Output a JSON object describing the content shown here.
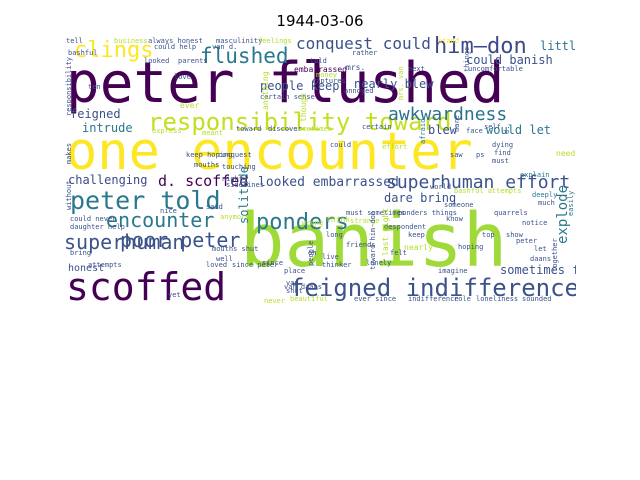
{
  "title": "1944-03-06",
  "words": [
    {
      "text": "banish",
      "color": "#a0da39"
    },
    {
      "text": "peter flushed",
      "color": "#440154"
    },
    {
      "text": "one encounter",
      "color": "#fde725"
    },
    {
      "text": "scoffed",
      "color": "#440154"
    },
    {
      "text": "feigned indifference",
      "color": "#3b528b"
    },
    {
      "text": "responsibility toward",
      "color": "#c2df23"
    },
    {
      "text": "peter told",
      "color": "#2a788e"
    },
    {
      "text": "ponders",
      "color": "#2a788e"
    },
    {
      "text": "superhuman effort",
      "color": "#3b528b"
    },
    {
      "text": "awkwardness",
      "color": "#2c728e"
    },
    {
      "text": "clings",
      "color": "#fde725"
    },
    {
      "text": "flushed",
      "color": "#2a788e"
    },
    {
      "text": "him—don",
      "color": "#3e4989"
    },
    {
      "text": "conquest could",
      "color": "#3b528b"
    },
    {
      "text": "encounter",
      "color": "#2a788e"
    },
    {
      "text": "poor peter",
      "color": "#3b528b"
    },
    {
      "text": "superhuman",
      "color": "#3b528b"
    },
    {
      "text": "d. scoffed",
      "color": "#440154"
    },
    {
      "text": "looked embarrassed",
      "color": "#3b528b"
    },
    {
      "text": "challenging",
      "color": "#3e4989"
    },
    {
      "text": "explode",
      "color": "#2a788e"
    },
    {
      "text": "solitude",
      "color": "#2a788e"
    },
    {
      "text": "dare bring",
      "color": "#3b528b"
    },
    {
      "text": "could banish",
      "color": "#3b528b"
    },
    {
      "text": "little",
      "color": "#2a788e"
    },
    {
      "text": "people keep",
      "color": "#3b528b"
    },
    {
      "text": "nearly blew",
      "color": "#3b528b"
    },
    {
      "text": "blew",
      "color": "#3b528b"
    },
    {
      "text": "would let",
      "color": "#2a788e"
    },
    {
      "text": "feigned",
      "color": "#3b528b"
    },
    {
      "text": "intrude",
      "color": "#2a788e"
    },
    {
      "text": "honest",
      "color": "#3b528b"
    },
    {
      "text": "sometimes feel",
      "color": "#3b528b"
    },
    {
      "text": "tell",
      "color": "#3b528b"
    },
    {
      "text": "business",
      "color": "#b5de2b"
    },
    {
      "text": "always honest",
      "color": "#3b528b"
    },
    {
      "text": "masculinity",
      "color": "#3b528b"
    },
    {
      "text": "feelings",
      "color": "#b5de2b"
    },
    {
      "text": "could help",
      "color": "#3b528b"
    },
    {
      "text": "van d.",
      "color": "#3b528b"
    },
    {
      "text": "stand",
      "color": "#fde725"
    },
    {
      "text": "embarrassed",
      "color": "#440154"
    },
    {
      "text": "mrs.",
      "color": "#3b528b"
    },
    {
      "text": "ever",
      "color": "#b5de2b"
    },
    {
      "text": "responsibility",
      "color": "#3b528b"
    },
    {
      "text": "love",
      "color": "#3b528b"
    },
    {
      "text": "certain sense",
      "color": "#3b528b"
    },
    {
      "text": "annoyed",
      "color": "#3b528b"
    },
    {
      "text": "certain",
      "color": "#3b528b"
    },
    {
      "text": "sometimes",
      "color": "#b5de2b"
    },
    {
      "text": "toward",
      "color": "#3b528b"
    },
    {
      "text": "discover",
      "color": "#3b528b"
    },
    {
      "text": "keep hoping",
      "color": "#3b528b"
    },
    {
      "text": "afraid",
      "color": "#2a788e"
    },
    {
      "text": "dying",
      "color": "#3b528b"
    },
    {
      "text": "find",
      "color": "#3b528b"
    },
    {
      "text": "must",
      "color": "#3b528b"
    },
    {
      "text": "face",
      "color": "#3b528b"
    },
    {
      "text": "mouths",
      "color": "#3b528b"
    },
    {
      "text": "could",
      "color": "#3b528b"
    },
    {
      "text": "touching",
      "color": "#3b528b"
    },
    {
      "text": "world",
      "color": "#3b528b"
    },
    {
      "text": "bashful attempts",
      "color": "#b5de2b"
    },
    {
      "text": "deeply",
      "color": "#2a788e"
    },
    {
      "text": "much",
      "color": "#3b528b"
    },
    {
      "text": "daughter help",
      "color": "#3b528b"
    },
    {
      "text": "could never",
      "color": "#3b528b"
    },
    {
      "text": "must sometimes",
      "color": "#3b528b"
    },
    {
      "text": "ponders things",
      "color": "#3b528b"
    },
    {
      "text": "someone",
      "color": "#3b528b"
    },
    {
      "text": "quarrels",
      "color": "#3b528b"
    },
    {
      "text": "strange",
      "color": "#b5de2b"
    },
    {
      "text": "long",
      "color": "#3b528b"
    },
    {
      "text": "keep",
      "color": "#3b528b"
    },
    {
      "text": "hoping",
      "color": "#3b528b"
    },
    {
      "text": "show",
      "color": "#3b528b"
    },
    {
      "text": "nearly",
      "color": "#b5de2b"
    },
    {
      "text": "peter",
      "color": "#3b528b"
    },
    {
      "text": "let",
      "color": "#3b528b"
    },
    {
      "text": "daans",
      "color": "#3b528b"
    },
    {
      "text": "mouths shut",
      "color": "#3b528b"
    },
    {
      "text": "bring",
      "color": "#3b528b"
    },
    {
      "text": "attempts",
      "color": "#3b528b"
    },
    {
      "text": "since peter",
      "color": "#3b528b"
    },
    {
      "text": "loved",
      "color": "#3b528b"
    },
    {
      "text": "lonely",
      "color": "#3b528b"
    },
    {
      "text": "thinker",
      "color": "#3b528b"
    },
    {
      "text": "place",
      "color": "#3b528b"
    },
    {
      "text": "imagine",
      "color": "#3b528b"
    },
    {
      "text": "beautiful",
      "color": "#b5de2b"
    },
    {
      "text": "ever since",
      "color": "#3b528b"
    },
    {
      "text": "indifference",
      "color": "#3b528b"
    },
    {
      "text": "role",
      "color": "#3b528b"
    },
    {
      "text": "loneliness",
      "color": "#3b528b"
    },
    {
      "text": "sounded",
      "color": "#3b528b"
    },
    {
      "text": "yet",
      "color": "#3b528b"
    },
    {
      "text": "notice",
      "color": "#3b528b"
    },
    {
      "text": "never",
      "color": "#b5de2b"
    },
    {
      "text": "explain",
      "color": "#2a788e"
    },
    {
      "text": "despondent",
      "color": "#3b528b"
    },
    {
      "text": "friends",
      "color": "#3b528b"
    },
    {
      "text": "top",
      "color": "#3b528b"
    },
    {
      "text": "felt",
      "color": "#3b528b"
    },
    {
      "text": "toward him-don",
      "color": "#3b528b"
    },
    {
      "text": "last night",
      "color": "#b5de2b"
    },
    {
      "text": "since",
      "color": "#3b528b"
    },
    {
      "text": "think",
      "color": "#b5de2b"
    },
    {
      "text": "sidelines",
      "color": "#3b528b"
    },
    {
      "text": "rather",
      "color": "#3b528b"
    },
    {
      "text": "live",
      "color": "#3b528b"
    },
    {
      "text": "people",
      "color": "#3b528b"
    },
    {
      "text": "together",
      "color": "#3b528b"
    },
    {
      "text": "easily",
      "color": "#2a788e"
    },
    {
      "text": "bashful",
      "color": "#3b528b"
    },
    {
      "text": "told",
      "color": "#3b528b"
    },
    {
      "text": "parents",
      "color": "#3b528b"
    },
    {
      "text": "looked",
      "color": "#3b528b"
    },
    {
      "text": "without",
      "color": "#3b528b"
    },
    {
      "text": "makes",
      "color": "#3b528b"
    },
    {
      "text": "oh",
      "color": "#3b528b"
    },
    {
      "text": "self",
      "color": "#3b528b"
    },
    {
      "text": "well",
      "color": "#3b528b"
    },
    {
      "text": "anything",
      "color": "#b5de2b"
    },
    {
      "text": "though",
      "color": "#b5de2b"
    },
    {
      "text": "express",
      "color": "#b5de2b"
    },
    {
      "text": "meant",
      "color": "#b5de2b"
    },
    {
      "text": "conquest",
      "color": "#3b528b"
    },
    {
      "text": "night",
      "color": "#3b528b"
    },
    {
      "text": "ps",
      "color": "#3b528b"
    },
    {
      "text": "saw",
      "color": "#3b528b"
    },
    {
      "text": "next",
      "color": "#3b528b"
    },
    {
      "text": "ten",
      "color": "#3b528b"
    },
    {
      "text": "need",
      "color": "#b5de2b"
    },
    {
      "text": "know",
      "color": "#3b528b"
    },
    {
      "text": "nice",
      "color": "#3b528b"
    },
    {
      "text": "shut",
      "color": "#3b528b"
    },
    {
      "text": "van",
      "color": "#3b528b"
    },
    {
      "text": "uncomfortable",
      "color": "#3b528b"
    },
    {
      "text": "things",
      "color": "#3b528b"
    },
    {
      "text": "dare",
      "color": "#3b528b"
    },
    {
      "text": "money",
      "color": "#b5de2b"
    },
    {
      "text": "raptures",
      "color": "#3b528b"
    },
    {
      "text": "effort",
      "color": "#b5de2b"
    },
    {
      "text": "wrong",
      "color": "#b5de2b"
    },
    {
      "text": "mrs. van",
      "color": "#b5de2b"
    },
    {
      "text": "said",
      "color": "#3b528b"
    },
    {
      "text": "anymore",
      "color": "#b5de2b"
    },
    {
      "text": "d.",
      "color": "#3b528b"
    },
    {
      "text": "van daans",
      "color": "#3b528b"
    }
  ]
}
